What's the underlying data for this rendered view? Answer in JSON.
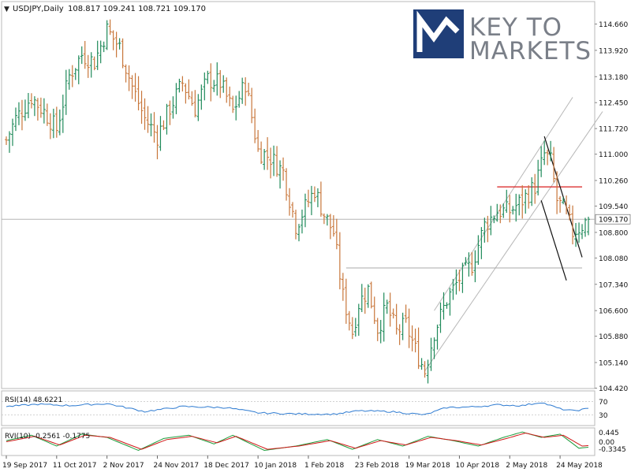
{
  "header": {
    "symbol": "USDJPY,Daily",
    "ohlc": "108.817 109.241 108.721 109.170"
  },
  "logo": {
    "line1": "KEY TO",
    "line2": "MARKETS",
    "color": "#1f3e78"
  },
  "colors": {
    "up": "#1f8a5a",
    "down": "#c8763a",
    "rsi": "#2e7bd1",
    "rvi_main": "#1e9c3c",
    "rvi_signal": "#d01818",
    "res": "#d81e1e"
  },
  "chart_data": [
    {
      "type": "ohlc",
      "title": "USDJPY,Daily",
      "symbol": "USDJPY",
      "timeframe": "Daily",
      "last": {
        "open": 108.817,
        "high": 109.241,
        "low": 108.721,
        "close": 109.17
      },
      "y_ticks": [
        "114.660",
        "113.920",
        "113.180",
        "112.450",
        "111.720",
        "111.000",
        "110.260",
        "109.540",
        "108.800",
        "108.080",
        "107.340",
        "106.600",
        "105.880",
        "105.140",
        "104.420"
      ],
      "y_tick_values": [
        114.66,
        113.92,
        113.18,
        112.45,
        111.72,
        111.0,
        110.26,
        109.54,
        108.8,
        108.08,
        107.34,
        106.6,
        105.88,
        105.14,
        104.42
      ],
      "ylim": [
        104.35,
        115.5
      ],
      "current_price_label": "109.170",
      "current_price": 109.17,
      "x_ticks": [
        "19 Sep 2017",
        "11 Oct 2017",
        "2 Nov 2017",
        "24 Nov 2017",
        "18 Dec 2017",
        "10 Jan 2018",
        "1 Feb 2018",
        "23 Feb 2018",
        "19 Mar 2018",
        "10 Apr 2018",
        "2 May 2018",
        "24 May 2018"
      ],
      "x_tick_bars": [
        0,
        16,
        32,
        48,
        64,
        80,
        96,
        112,
        128,
        144,
        160,
        176
      ],
      "bars": 186,
      "anchors": [
        [
          0,
          111.4
        ],
        [
          3,
          112.0
        ],
        [
          8,
          112.6
        ],
        [
          12,
          112.2
        ],
        [
          16,
          111.7
        ],
        [
          20,
          113.2
        ],
        [
          24,
          113.8
        ],
        [
          28,
          113.6
        ],
        [
          32,
          114.5
        ],
        [
          36,
          114.0
        ],
        [
          40,
          112.9
        ],
        [
          44,
          112.0
        ],
        [
          48,
          111.5
        ],
        [
          52,
          112.3
        ],
        [
          56,
          113.0
        ],
        [
          60,
          112.3
        ],
        [
          64,
          113.1
        ],
        [
          68,
          113.0
        ],
        [
          72,
          112.2
        ],
        [
          76,
          113.0
        ],
        [
          80,
          111.1
        ],
        [
          84,
          110.9
        ],
        [
          88,
          110.5
        ],
        [
          92,
          109.0
        ],
        [
          95,
          109.5
        ],
        [
          98,
          110.0
        ],
        [
          101,
          109.3
        ],
        [
          104,
          108.8
        ],
        [
          107,
          107.0
        ],
        [
          110,
          106.0
        ],
        [
          112,
          106.8
        ],
        [
          115,
          107.2
        ],
        [
          118,
          106.1
        ],
        [
          121,
          106.7
        ],
        [
          124,
          106.0
        ],
        [
          127,
          106.2
        ],
        [
          130,
          105.5
        ],
        [
          133,
          104.9
        ],
        [
          136,
          106.0
        ],
        [
          140,
          106.9
        ],
        [
          144,
          107.5
        ],
        [
          148,
          107.9
        ],
        [
          152,
          109.0
        ],
        [
          156,
          109.4
        ],
        [
          160,
          109.4
        ],
        [
          164,
          109.7
        ],
        [
          168,
          110.1
        ],
        [
          171,
          111.0
        ],
        [
          173,
          110.8
        ],
        [
          175,
          109.7
        ],
        [
          178,
          109.3
        ],
        [
          180,
          108.8
        ],
        [
          183,
          109.0
        ],
        [
          185,
          109.17
        ]
      ]
    },
    {
      "type": "line",
      "title": "RSI(14) 48.6221",
      "ylim": [
        0,
        100
      ],
      "y_ticks": [
        "70",
        "30"
      ],
      "y_tick_values": [
        70,
        30
      ],
      "anchors": [
        [
          0,
          55
        ],
        [
          10,
          62
        ],
        [
          20,
          58
        ],
        [
          32,
          64
        ],
        [
          44,
          40
        ],
        [
          56,
          55
        ],
        [
          70,
          52
        ],
        [
          80,
          36
        ],
        [
          92,
          33
        ],
        [
          104,
          32
        ],
        [
          112,
          42
        ],
        [
          122,
          40
        ],
        [
          133,
          30
        ],
        [
          140,
          52
        ],
        [
          148,
          54
        ],
        [
          156,
          60
        ],
        [
          164,
          58
        ],
        [
          170,
          68
        ],
        [
          176,
          48
        ],
        [
          180,
          42
        ],
        [
          185,
          48.6
        ]
      ]
    },
    {
      "type": "line",
      "title": "RVI(10) -0.2561 -0.1775",
      "ylim": [
        -0.6,
        0.6
      ],
      "y_ticks": [
        "0.445",
        "0.00",
        "-0.3345"
      ],
      "y_tick_values": [
        0.445,
        0.0,
        -0.3345
      ],
      "series": [
        {
          "name": "-0.2561",
          "anchors": [
            [
              0,
              0.05
            ],
            [
              8,
              0.3
            ],
            [
              16,
              -0.2
            ],
            [
              24,
              0.35
            ],
            [
              32,
              0.2
            ],
            [
              42,
              -0.4
            ],
            [
              50,
              0.15
            ],
            [
              58,
              0.3
            ],
            [
              66,
              -0.1
            ],
            [
              72,
              0.3
            ],
            [
              82,
              -0.4
            ],
            [
              92,
              -0.2
            ],
            [
              102,
              0.1
            ],
            [
              110,
              -0.35
            ],
            [
              118,
              0.1
            ],
            [
              126,
              -0.2
            ],
            [
              134,
              0.25
            ],
            [
              142,
              0.05
            ],
            [
              150,
              -0.2
            ],
            [
              158,
              0.2
            ],
            [
              164,
              0.45
            ],
            [
              170,
              0.2
            ],
            [
              176,
              0.35
            ],
            [
              182,
              -0.3
            ],
            [
              185,
              -0.256
            ]
          ]
        },
        {
          "name": "-0.1775",
          "anchors": [
            [
              0,
              0.0
            ],
            [
              9,
              0.25
            ],
            [
              17,
              -0.15
            ],
            [
              25,
              0.3
            ],
            [
              33,
              0.2
            ],
            [
              43,
              -0.35
            ],
            [
              51,
              0.1
            ],
            [
              59,
              0.25
            ],
            [
              67,
              -0.05
            ],
            [
              73,
              0.25
            ],
            [
              83,
              -0.35
            ],
            [
              93,
              -0.2
            ],
            [
              103,
              0.05
            ],
            [
              111,
              -0.3
            ],
            [
              119,
              0.05
            ],
            [
              127,
              -0.15
            ],
            [
              135,
              0.2
            ],
            [
              143,
              0.05
            ],
            [
              151,
              -0.15
            ],
            [
              159,
              0.15
            ],
            [
              165,
              0.4
            ],
            [
              171,
              0.2
            ],
            [
              177,
              0.3
            ],
            [
              183,
              -0.2
            ],
            [
              185,
              -0.178
            ]
          ]
        }
      ]
    }
  ]
}
